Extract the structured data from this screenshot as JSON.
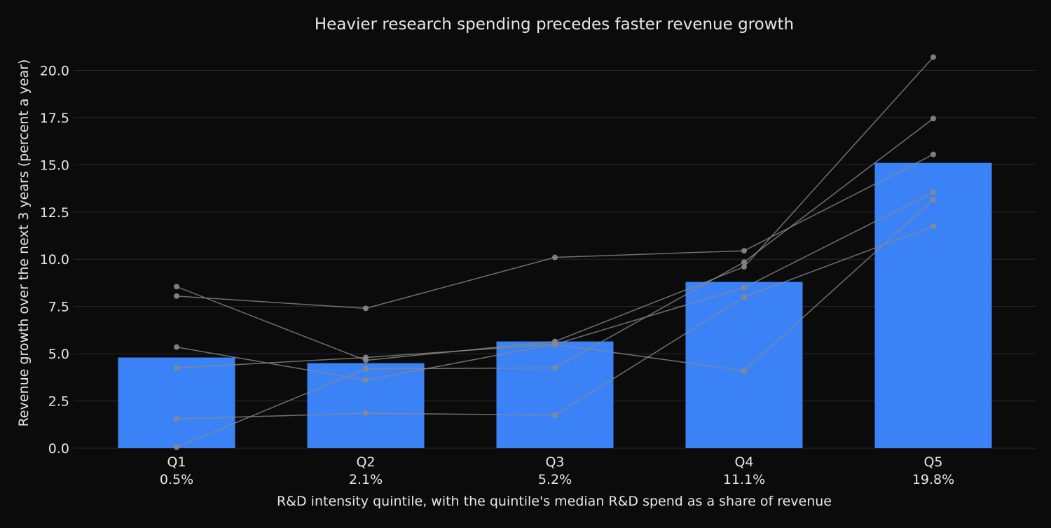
{
  "chart_data": {
    "type": "bar",
    "title": "Heavier research spending precedes faster revenue growth",
    "xlabel": "R&D intensity quintile, with the quintile's median R&D spend as a share of revenue",
    "ylabel": "Revenue growth over the next 3 years (percent a year)",
    "categories": [
      "Q1",
      "Q2",
      "Q3",
      "Q4",
      "Q5"
    ],
    "category_sublabels": [
      "0.5%",
      "2.1%",
      "5.2%",
      "11.1%",
      "19.8%"
    ],
    "values": [
      4.8,
      4.5,
      5.65,
      8.8,
      15.1
    ],
    "overlay_lines": [
      [
        8.55,
        4.65,
        5.65,
        9.6,
        20.7
      ],
      [
        8.05,
        7.4,
        10.1,
        10.45,
        15.55
      ],
      [
        5.35,
        3.6,
        5.5,
        4.1,
        13.15
      ],
      [
        4.25,
        4.8,
        5.5,
        8.5,
        13.55
      ],
      [
        1.55,
        1.85,
        1.75,
        8.0,
        11.75
      ],
      [
        0.05,
        4.2,
        4.25,
        9.85,
        17.45
      ]
    ],
    "ylim": [
      0,
      21.5
    ],
    "yticks": [
      0.0,
      2.5,
      5.0,
      7.5,
      10.0,
      12.5,
      15.0,
      17.5,
      20.0
    ],
    "ytick_labels": [
      "0.0",
      "2.5",
      "5.0",
      "7.5",
      "10.0",
      "12.5",
      "15.0",
      "17.5",
      "20.0"
    ],
    "grid": true,
    "colors": {
      "background": "#0b0b0c",
      "bar": "#3b82f6",
      "overlay": "#8a8a8a",
      "grid": "#2a2a2e",
      "text": "#e6e6e6"
    }
  }
}
